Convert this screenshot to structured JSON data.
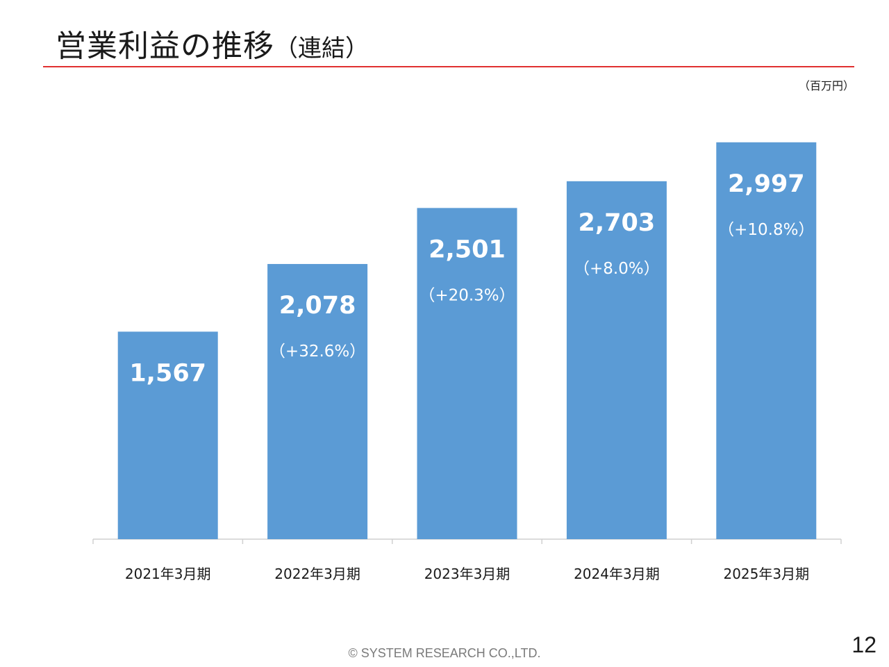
{
  "slide": {
    "title": "営業利益の推移",
    "title_sub": "（連結）",
    "unit": "（百万円）",
    "footer": "© SYSTEM RESEARCH CO.,LTD.",
    "page_number": "12",
    "colors": {
      "bar": "#5b9bd5",
      "rule": "#e03030",
      "text": "#1a1a1a",
      "bar_text": "#ffffff"
    }
  },
  "chart_data": {
    "type": "bar",
    "categories": [
      "2021年3月期",
      "2022年3月期",
      "2023年3月期",
      "2024年3月期",
      "2025年3月期"
    ],
    "values": [
      1567,
      2078,
      2501,
      2703,
      2997
    ],
    "value_labels": [
      "1,567",
      "2,078",
      "2,501",
      "2,703",
      "2,997"
    ],
    "change_labels": [
      "",
      "（+32.6%）",
      "（+20.3%）",
      "（+8.0%）",
      "（+10.8%）"
    ],
    "ylim": [
      0,
      3400
    ],
    "grid": false,
    "legend": "none"
  }
}
